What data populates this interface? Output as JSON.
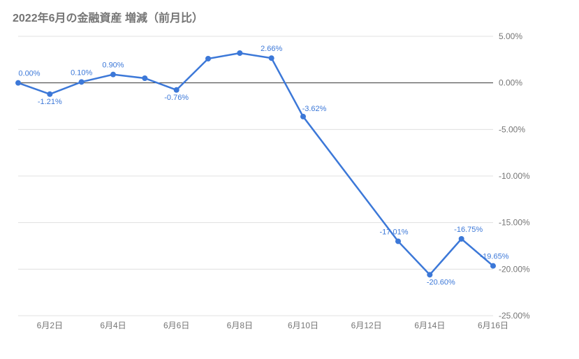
{
  "title": "2022年6月の金融資産 増減（前月比）",
  "chart": {
    "type": "line",
    "background_color": "#ffffff",
    "grid_color": "#e0e0e0",
    "zero_line_color": "#343434",
    "title_color": "#757575",
    "title_fontsize": 16,
    "axis_label_color": "#757575",
    "axis_label_fontsize": 12,
    "data_label_color": "#3c78d8",
    "data_label_fontsize": 11,
    "line_color": "#3c78d8",
    "marker_color": "#3c78d8",
    "marker_radius": 4,
    "line_width": 2.5,
    "plot": {
      "inner_x": 8,
      "inner_y": 8,
      "inner_width": 680,
      "inner_height": 400,
      "right_axis_gap": 54
    },
    "ylim": [
      -25,
      5
    ],
    "ytick_step": 5,
    "yticks": [
      {
        "v": 5,
        "label": "5.00%"
      },
      {
        "v": 0,
        "label": "0.00%"
      },
      {
        "v": -5,
        "label": "-5.00%"
      },
      {
        "v": -10,
        "label": "-10.00%"
      },
      {
        "v": -15,
        "label": "-15.00%"
      },
      {
        "v": -20,
        "label": "-20.00%"
      },
      {
        "v": -25,
        "label": "-25.00%"
      }
    ],
    "xticks": [
      {
        "i": 1,
        "label": "6月2日"
      },
      {
        "i": 3,
        "label": "6月4日"
      },
      {
        "i": 5,
        "label": "6月6日"
      },
      {
        "i": 7,
        "label": "6月8日"
      },
      {
        "i": 9,
        "label": "6月10日"
      },
      {
        "i": 11,
        "label": "6月12日"
      },
      {
        "i": 13,
        "label": "6月14日"
      },
      {
        "i": 15,
        "label": "6月16日"
      }
    ],
    "series": {
      "name": "増減",
      "labels_shown": [
        0,
        1,
        2,
        3,
        5,
        8,
        9,
        12,
        13,
        14,
        15
      ],
      "label_offsets": {
        "0": {
          "dx": 16,
          "dy": -10
        },
        "1": {
          "dx": 0,
          "dy": 14
        },
        "2": {
          "dx": 0,
          "dy": -10
        },
        "3": {
          "dx": 0,
          "dy": -10
        },
        "5": {
          "dx": 0,
          "dy": 14
        },
        "8": {
          "dx": 0,
          "dy": -10
        },
        "9": {
          "dx": 16,
          "dy": -8
        },
        "12": {
          "dx": -6,
          "dy": -10
        },
        "13": {
          "dx": 16,
          "dy": 14
        },
        "14": {
          "dx": 10,
          "dy": -10
        },
        "15": {
          "dx": 2,
          "dy": -10
        }
      },
      "points": [
        {
          "i": 0,
          "v": 0.0,
          "label": "0.00%"
        },
        {
          "i": 1,
          "v": -1.21,
          "label": "-1.21%"
        },
        {
          "i": 2,
          "v": 0.1,
          "label": "0.10%"
        },
        {
          "i": 3,
          "v": 0.9,
          "label": "0.90%"
        },
        {
          "i": 4,
          "v": 0.5,
          "label": "0.50%"
        },
        {
          "i": 5,
          "v": -0.76,
          "label": "-0.76%"
        },
        {
          "i": 6,
          "v": 2.6,
          "label": "2.60%"
        },
        {
          "i": 7,
          "v": 3.2,
          "label": "3.20%"
        },
        {
          "i": 8,
          "v": 2.66,
          "label": "2.66%"
        },
        {
          "i": 9,
          "v": -3.62,
          "label": "-3.62%"
        },
        {
          "i": 12,
          "v": -17.01,
          "label": "-17.01%"
        },
        {
          "i": 13,
          "v": -20.6,
          "label": "-20.60%"
        },
        {
          "i": 14,
          "v": -16.75,
          "label": "-16.75%"
        },
        {
          "i": 15,
          "v": -19.65,
          "label": "-19.65%"
        }
      ]
    }
  }
}
